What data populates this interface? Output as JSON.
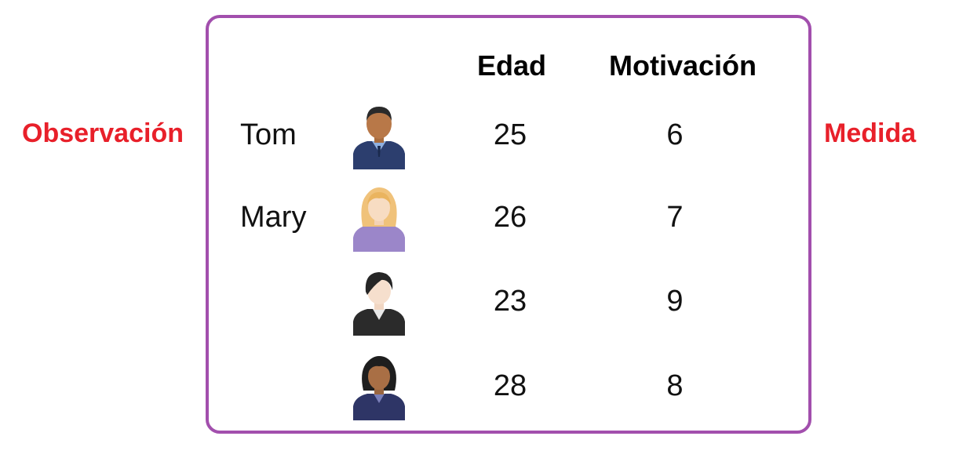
{
  "side_labels": {
    "left": "Observación",
    "right": "Medida"
  },
  "headers": {
    "edad": "Edad",
    "motivacion": "Motivación"
  },
  "rows": [
    {
      "name": "Tom",
      "avatar": "man-dark-skin-avatar-icon",
      "edad": "25",
      "motivacion": "6"
    },
    {
      "name": "Mary",
      "avatar": "woman-blonde-avatar-icon",
      "edad": "26",
      "motivacion": "7"
    },
    {
      "name": "",
      "avatar": "woman-suit-avatar-icon",
      "edad": "23",
      "motivacion": "9"
    },
    {
      "name": "",
      "avatar": "woman-dark-skin-avatar-icon",
      "edad": "28",
      "motivacion": "8"
    }
  ],
  "colors": {
    "label_red": "#e8202a",
    "frame_purple": "#a24fad"
  }
}
